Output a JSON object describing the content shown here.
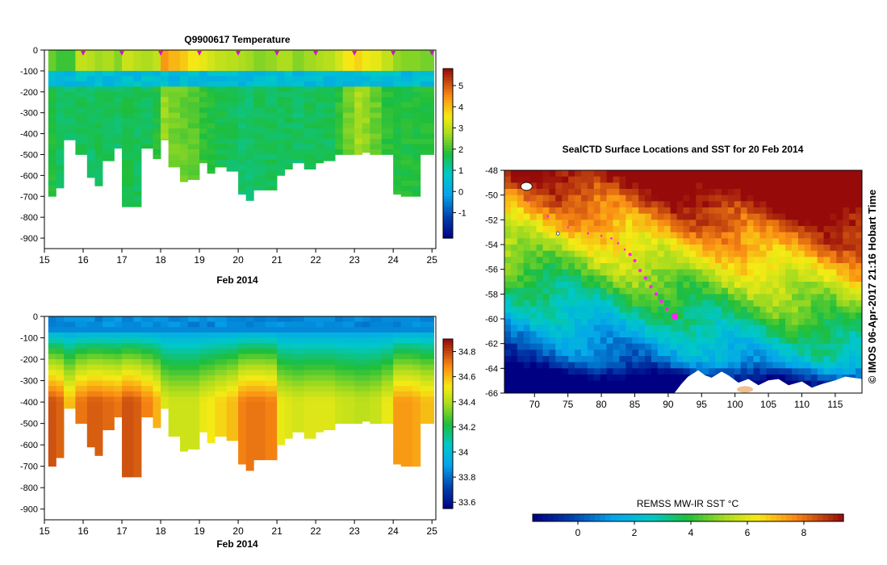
{
  "chart_data": [
    {
      "type": "heatmap",
      "title": "Q9900617  Temperature",
      "xlabel": "Feb 2014",
      "ylabel": "",
      "xlim": [
        15,
        25.1
      ],
      "ylim": [
        -950,
        0
      ],
      "x_ticks": [
        15,
        16,
        17,
        18,
        19,
        20,
        21,
        22,
        23,
        24,
        25
      ],
      "y_ticks": [
        0,
        -100,
        -200,
        -300,
        -400,
        -500,
        -600,
        -700,
        -800,
        -900
      ],
      "profile_markers_x": [
        16,
        17,
        18,
        19,
        20,
        21,
        22,
        23,
        24,
        25
      ],
      "colorbar": {
        "min": -2.2,
        "max": 5.8,
        "ticks": [
          -1,
          0,
          1,
          2,
          3,
          4,
          5
        ]
      },
      "profile_times": [
        15.1,
        15.3,
        15.5,
        15.8,
        16.1,
        16.3,
        16.5,
        16.8,
        17.0,
        17.3,
        17.5,
        17.8,
        18.0,
        18.2,
        18.5,
        18.7,
        19.0,
        19.2,
        19.4,
        19.7,
        20.0,
        20.2,
        20.4,
        20.7,
        21.0,
        21.2,
        21.4,
        21.7,
        22.0,
        22.2,
        22.5,
        22.7,
        23.0,
        23.2,
        23.4,
        23.7,
        24.0,
        24.2,
        24.5,
        24.7
      ],
      "profile_max_depth": [
        700,
        660,
        430,
        500,
        610,
        650,
        530,
        470,
        750,
        750,
        470,
        520,
        430,
        560,
        630,
        620,
        540,
        590,
        560,
        580,
        690,
        720,
        670,
        670,
        600,
        570,
        540,
        570,
        540,
        530,
        500,
        500,
        500,
        490,
        500,
        500,
        690,
        700,
        700,
        500
      ],
      "profile_mixed_layer_temp": [
        2.3,
        2.0,
        2.0,
        3.0,
        2.9,
        2.7,
        2.8,
        2.5,
        3.1,
        2.9,
        2.8,
        3.0,
        4.4,
        4.1,
        3.9,
        3.6,
        3.4,
        3.2,
        3.0,
        2.9,
        2.8,
        2.7,
        2.5,
        2.6,
        2.8,
        2.8,
        2.5,
        2.7,
        2.8,
        2.9,
        3.2,
        3.6,
        3.8,
        3.5,
        3.4,
        3.0,
        2.6,
        2.5,
        2.5,
        2.4
      ],
      "profile_deep_temp": [
        1.8,
        1.5,
        1.5,
        1.6,
        1.5,
        1.6,
        1.6,
        1.5,
        1.7,
        1.6,
        1.6,
        1.8,
        2.6,
        2.4,
        2.3,
        2.2,
        1.9,
        1.8,
        1.7,
        1.6,
        1.5,
        1.5,
        1.6,
        1.6,
        1.6,
        1.6,
        1.5,
        1.6,
        1.6,
        1.6,
        1.9,
        2.4,
        2.8,
        2.6,
        2.3,
        1.9,
        1.8,
        1.8,
        1.8,
        1.8
      ]
    },
    {
      "type": "heatmap",
      "title": "",
      "xlabel": "Feb 2014",
      "ylabel": "",
      "xlim": [
        15,
        25.1
      ],
      "ylim": [
        -950,
        0
      ],
      "x_ticks": [
        15,
        16,
        17,
        18,
        19,
        20,
        21,
        22,
        23,
        24,
        25
      ],
      "y_ticks": [
        0,
        -100,
        -200,
        -300,
        -400,
        -500,
        -600,
        -700,
        -800,
        -900
      ],
      "colorbar": {
        "min": 33.55,
        "max": 34.9,
        "ticks": [
          33.6,
          33.8,
          34,
          34.2,
          34.4,
          34.6,
          34.8
        ]
      },
      "profile_surface_salinity": 33.85,
      "profile_deep_salinity": [
        34.78,
        34.75,
        34.6,
        34.72,
        34.76,
        34.76,
        34.74,
        34.72,
        34.78,
        34.76,
        34.7,
        34.62,
        34.48,
        34.45,
        34.45,
        34.45,
        34.5,
        34.52,
        34.56,
        34.6,
        34.7,
        34.72,
        34.72,
        34.7,
        34.5,
        34.48,
        34.46,
        34.48,
        34.48,
        34.48,
        34.45,
        34.44,
        34.42,
        34.42,
        34.44,
        34.5,
        34.66,
        34.66,
        34.64,
        34.6
      ]
    },
    {
      "type": "heatmap",
      "title": "SealCTD Surface Locations and SST for 20 Feb 2014",
      "xlabel": "",
      "ylabel": "",
      "xlim": [
        65.5,
        119
      ],
      "ylim": [
        -66,
        -48
      ],
      "x_ticks": [
        70,
        75,
        80,
        85,
        90,
        95,
        100,
        105,
        110,
        115
      ],
      "y_ticks": [
        -48,
        -50,
        -52,
        -54,
        -56,
        -58,
        -60,
        -62,
        -64,
        -66
      ],
      "colorbar": {
        "label": "REMSS MW-IR SST °C",
        "min": -1.6,
        "max": 9.4,
        "ticks": [
          0,
          2,
          4,
          6,
          8
        ]
      },
      "track_lon": [
        69.0,
        72.0,
        75.0,
        78.0,
        80.0,
        81.5,
        82.5,
        83.5,
        84.3,
        85.0,
        85.8,
        86.6,
        87.4,
        88.2,
        89.0,
        89.8
      ],
      "track_lat": [
        -50.5,
        -51.7,
        -52.6,
        -53.1,
        -53.3,
        -53.5,
        -53.9,
        -54.4,
        -54.8,
        -55.3,
        -56.1,
        -56.7,
        -57.4,
        -58.0,
        -58.6,
        -59.2
      ],
      "latest_position": {
        "lon": 91.0,
        "lat": -59.8
      },
      "side_label": "© IMOS 06-Apr-2017 21:16 Hobart Time"
    }
  ]
}
